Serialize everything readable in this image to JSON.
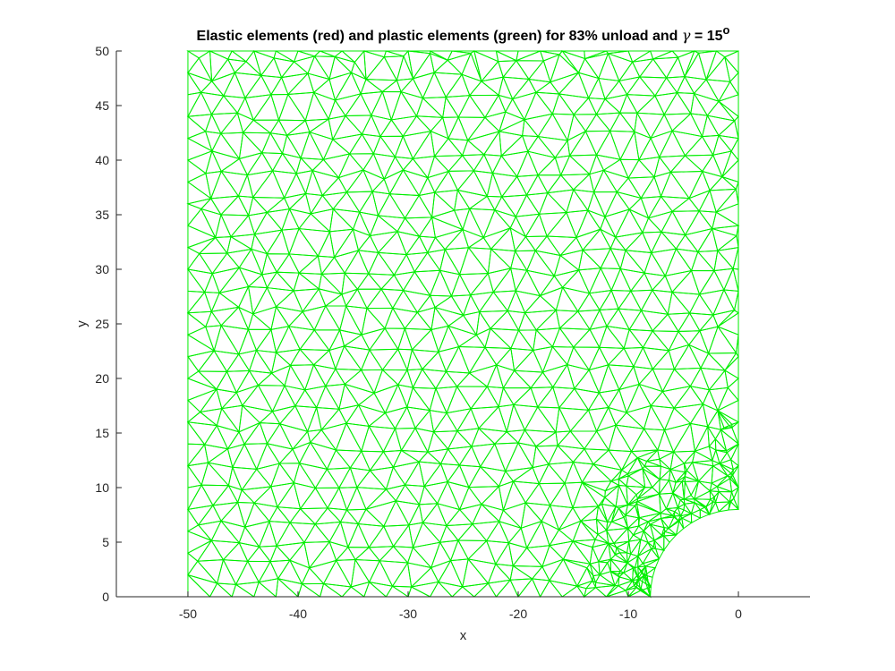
{
  "chart_data": {
    "type": "mesh",
    "title_prefix": "Elastic elements (red) and plastic elements (green) for 83% unload and",
    "title_gamma_symbol": "γ",
    "title_suffix": "= 15",
    "title_degree": "o",
    "xlabel": "x",
    "ylabel": "y",
    "xlim": [
      -56.5,
      6.5
    ],
    "ylim": [
      0,
      50
    ],
    "xticks": [
      -50,
      -40,
      -30,
      -20,
      -10,
      0
    ],
    "yticks": [
      0,
      5,
      10,
      15,
      20,
      25,
      30,
      35,
      40,
      45,
      50
    ],
    "xtick_labels": [
      "-50",
      "-40",
      "-30",
      "-20",
      "-10",
      "0"
    ],
    "ytick_labels": [
      "0",
      "5",
      "10",
      "15",
      "20",
      "25",
      "30",
      "35",
      "40",
      "45",
      "50"
    ],
    "domain": {
      "x_range": [
        -50,
        0
      ],
      "y_range": [
        0,
        50
      ],
      "notch_center": [
        0,
        0
      ],
      "notch_radius": 8
    },
    "series": [
      {
        "name": "plastic",
        "color": "#00ee00",
        "fraction": 1.0
      },
      {
        "name": "elastic",
        "color": "#ff0000",
        "fraction": 0.0
      }
    ],
    "grid": false,
    "box": false
  }
}
